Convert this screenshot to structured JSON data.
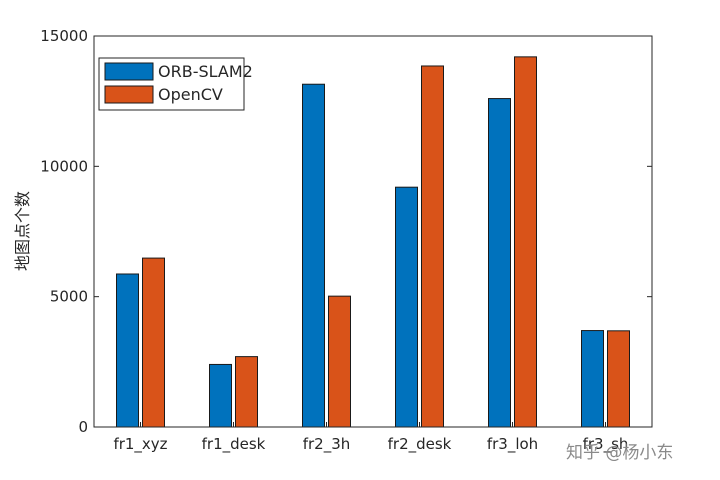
{
  "chart_data": {
    "type": "bar",
    "categories": [
      "fr1_xyz",
      "fr1_desk",
      "fr2_3h",
      "fr2_desk",
      "fr3_loh",
      "fr3_sh"
    ],
    "series": [
      {
        "name": "ORB-SLAM2",
        "color": "#0072BD",
        "values": [
          5870,
          2400,
          13150,
          9200,
          12600,
          3700
        ]
      },
      {
        "name": "OpenCV",
        "color": "#D95319",
        "values": [
          6480,
          2700,
          5020,
          13850,
          14200,
          3690
        ]
      }
    ],
    "title": "",
    "xlabel": "",
    "ylabel": "地图点个数",
    "ylim": [
      0,
      15000
    ],
    "yticks": [
      0,
      5000,
      10000,
      15000
    ],
    "legend": "top-left",
    "grid": false
  },
  "watermark": "知乎 @杨小东"
}
